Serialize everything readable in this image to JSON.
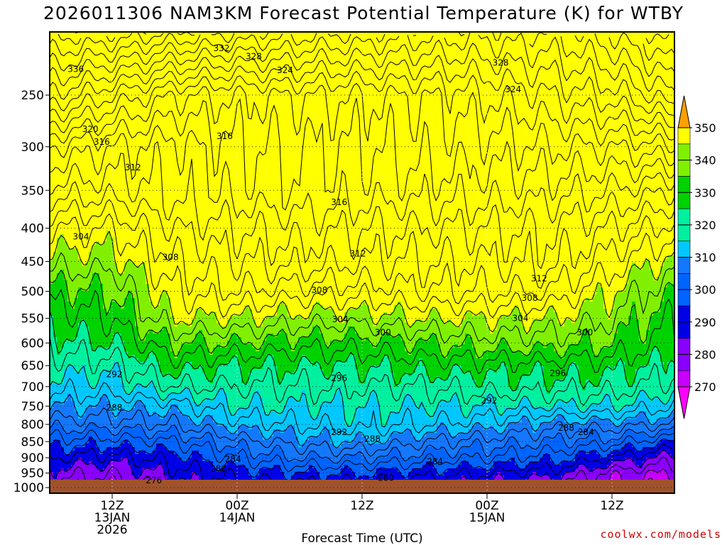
{
  "chart_data": {
    "type": "heatmap",
    "title": "2026011306 NAM3KM Forecast Potential Temperature (K) for WTBY",
    "xlabel": "Forecast Time (UTC)",
    "ylabel": "",
    "credit": "coolwx.com/models",
    "x_ticks": [
      {
        "line1": "12Z",
        "line2": "13JAN",
        "line3": "2026",
        "hour": 6
      },
      {
        "line1": "00Z",
        "line2": "14JAN",
        "line3": "",
        "hour": 18
      },
      {
        "line1": "12Z",
        "line2": "",
        "line3": "",
        "hour": 30
      },
      {
        "line1": "00Z",
        "line2": "15JAN",
        "line3": "",
        "hour": 42
      },
      {
        "line1": "12Z",
        "line2": "",
        "line3": "",
        "hour": 54
      }
    ],
    "xlim_hours": [
      0,
      60
    ],
    "y_ticks": [
      {
        "label": "250",
        "p": 250
      },
      {
        "label": "300",
        "p": 300
      },
      {
        "label": "350",
        "p": 350
      },
      {
        "label": "400",
        "p": 400
      },
      {
        "label": "450",
        "p": 450
      },
      {
        "label": "500",
        "p": 500
      },
      {
        "label": "550",
        "p": 550
      },
      {
        "label": "600",
        "p": 600
      },
      {
        "label": "650",
        "p": 650
      },
      {
        "label": "700",
        "p": 700
      },
      {
        "label": "750",
        "p": 750
      },
      {
        "label": "800",
        "p": 800
      },
      {
        "label": "850",
        "p": 850
      },
      {
        "label": "900",
        "p": 900
      },
      {
        "label": "950",
        "p": 950
      },
      {
        "label": "1000",
        "p": 1000
      }
    ],
    "ylim_hpa": [
      200,
      1020
    ],
    "colorbar": {
      "levels": [
        270,
        280,
        290,
        300,
        310,
        320,
        330,
        340,
        350
      ],
      "labels": [
        "270",
        "280",
        "290",
        "300",
        "310",
        "320",
        "330",
        "340",
        "350"
      ],
      "colors": [
        "#ff00ff",
        "#c800ff",
        "#8a00ff",
        "#0000e6",
        "#0064ff",
        "#1478ff",
        "#00c8ff",
        "#00f0a0",
        "#00d200",
        "#80f000",
        "#ffff00",
        "#ffa000"
      ]
    },
    "profile_levels_hpa": [
      200,
      250,
      300,
      350,
      400,
      450,
      500,
      550,
      600,
      650,
      700,
      750,
      800,
      850,
      900,
      950,
      1000
    ],
    "profile_hours": [
      0,
      6,
      12,
      18,
      24,
      30,
      36,
      42,
      48,
      54,
      60
    ],
    "potential_temperature_k": [
      [
        337,
        336,
        334,
        332,
        331,
        330,
        329,
        329,
        330,
        334,
        340
      ],
      [
        328,
        324,
        320,
        320,
        320,
        320,
        320,
        322,
        324,
        327,
        332
      ],
      [
        318,
        316,
        315,
        318,
        318,
        318,
        319,
        319,
        320,
        320,
        322
      ],
      [
        313,
        313,
        315,
        317,
        318,
        317,
        317,
        317,
        317,
        316,
        314
      ],
      [
        308,
        308,
        312,
        314,
        315,
        314,
        314,
        314,
        314,
        312,
        309
      ],
      [
        305,
        305,
        310,
        312,
        313,
        312,
        312,
        312,
        313,
        309,
        305
      ],
      [
        301,
        302,
        308,
        310,
        309,
        309,
        310,
        310,
        310,
        306,
        302
      ],
      [
        299,
        300,
        306,
        306,
        305,
        305,
        306,
        306,
        306,
        304,
        300
      ],
      [
        297,
        298,
        302,
        302,
        301,
        301,
        302,
        303,
        303,
        302,
        299
      ],
      [
        295,
        295,
        299,
        298,
        298,
        298,
        299,
        299,
        299,
        299,
        297
      ],
      [
        293,
        293,
        296,
        296,
        296,
        296,
        296,
        297,
        297,
        297,
        295
      ],
      [
        290,
        290,
        291,
        294,
        294,
        294,
        294,
        294,
        294,
        294,
        292
      ],
      [
        287,
        287,
        288,
        291,
        292,
        293,
        292,
        291,
        289,
        289,
        288
      ],
      [
        283,
        283,
        284,
        287,
        289,
        290,
        288,
        287,
        286,
        285,
        282
      ],
      [
        280,
        279,
        281,
        284,
        286,
        286,
        285,
        284,
        283,
        280,
        277
      ],
      [
        277,
        276,
        279,
        281,
        282,
        282,
        281,
        280,
        279,
        275,
        274
      ],
      [
        275,
        274,
        277,
        279,
        279,
        279,
        278,
        277,
        276,
        273,
        272
      ]
    ],
    "contour_labels": [
      {
        "text": "332",
        "hour": 16.5,
        "p": 212
      },
      {
        "text": "328",
        "hour": 19.6,
        "p": 218
      },
      {
        "text": "336",
        "hour": 2.5,
        "p": 228
      },
      {
        "text": "324",
        "hour": 22.6,
        "p": 229
      },
      {
        "text": "328",
        "hour": 43.3,
        "p": 223
      },
      {
        "text": "324",
        "hour": 44.5,
        "p": 245
      },
      {
        "text": "320",
        "hour": 3.9,
        "p": 282
      },
      {
        "text": "316",
        "hour": 5.0,
        "p": 295
      },
      {
        "text": "316",
        "hour": 16.8,
        "p": 289
      },
      {
        "text": "312",
        "hour": 8.0,
        "p": 323
      },
      {
        "text": "316",
        "hour": 27.8,
        "p": 365
      },
      {
        "text": "304",
        "hour": 3.0,
        "p": 412
      },
      {
        "text": "308",
        "hour": 11.6,
        "p": 443
      },
      {
        "text": "312",
        "hour": 29.6,
        "p": 438
      },
      {
        "text": "312",
        "hour": 47.0,
        "p": 478
      },
      {
        "text": "308",
        "hour": 25.9,
        "p": 498
      },
      {
        "text": "308",
        "hour": 46.1,
        "p": 512
      },
      {
        "text": "304",
        "hour": 27.9,
        "p": 552
      },
      {
        "text": "304",
        "hour": 45.2,
        "p": 550
      },
      {
        "text": "300",
        "hour": 32.0,
        "p": 578
      },
      {
        "text": "300",
        "hour": 51.4,
        "p": 578
      },
      {
        "text": "292",
        "hour": 6.2,
        "p": 670
      },
      {
        "text": "296",
        "hour": 27.8,
        "p": 680
      },
      {
        "text": "296",
        "hour": 48.8,
        "p": 668
      },
      {
        "text": "292",
        "hour": 42.2,
        "p": 735
      },
      {
        "text": "288",
        "hour": 6.2,
        "p": 754
      },
      {
        "text": "292",
        "hour": 27.8,
        "p": 822
      },
      {
        "text": "288",
        "hour": 31.0,
        "p": 842
      },
      {
        "text": "288",
        "hour": 49.6,
        "p": 810
      },
      {
        "text": "284",
        "hour": 51.5,
        "p": 822
      },
      {
        "text": "284",
        "hour": 17.6,
        "p": 904
      },
      {
        "text": "284",
        "hour": 37.0,
        "p": 912
      },
      {
        "text": "280",
        "hour": 16.2,
        "p": 935
      },
      {
        "text": "280",
        "hour": 32.3,
        "p": 966
      },
      {
        "text": "276",
        "hour": 10.0,
        "p": 975
      }
    ]
  }
}
